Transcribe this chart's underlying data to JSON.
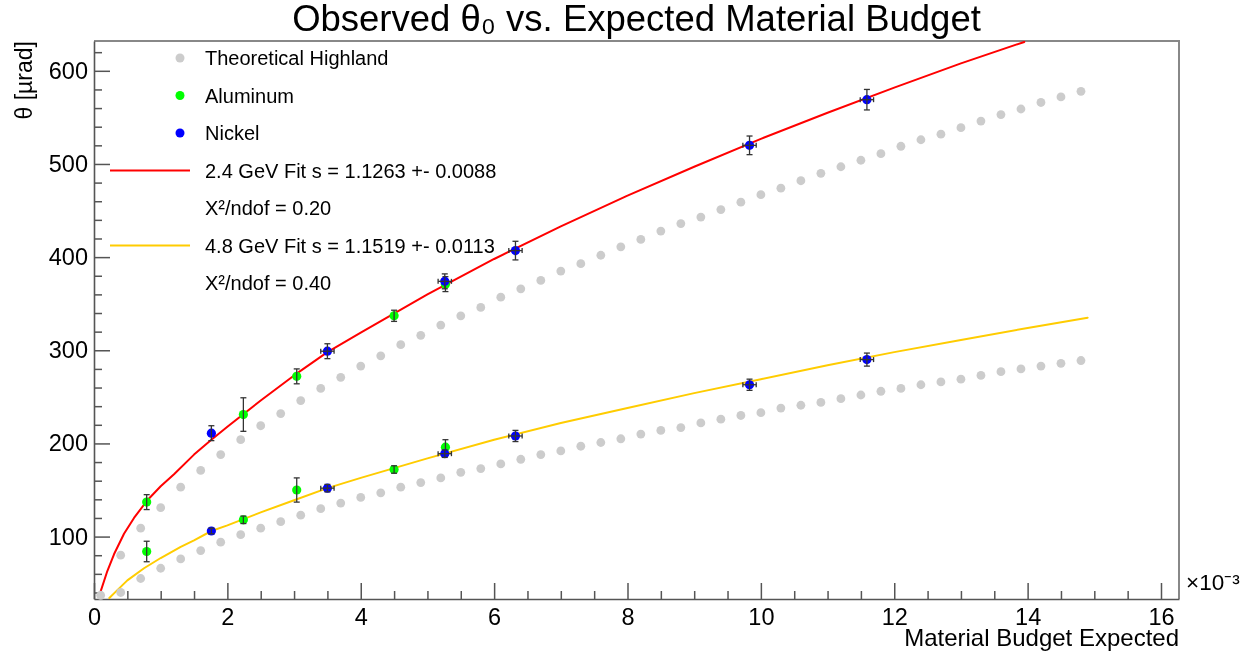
{
  "chart_data": {
    "type": "scatter",
    "title": "Observed θ₀ vs. Expected Material Budget",
    "xlabel": "Material Budget Expected",
    "ylabel": "θ [µrad]",
    "annotations": [
      "X²/ndof = 0.20",
      "X²/ndof = 0.40",
      "×10⁻³"
    ],
    "xlim": [
      0,
      16.27
    ],
    "ylim": [
      33,
      632
    ],
    "xticks": [
      0,
      {
        "value": 0.5,
        "label": null
      },
      {
        "value": 1,
        "label": null
      },
      {
        "value": 1.5,
        "label": null
      },
      2,
      {
        "value": 2.5,
        "label": null
      },
      {
        "value": 3,
        "label": null
      },
      {
        "value": 3.5,
        "label": null
      },
      4,
      {
        "value": 4.5,
        "label": null
      },
      {
        "value": 5,
        "label": null
      },
      {
        "value": 5.5,
        "label": null
      },
      6,
      {
        "value": 6.5,
        "label": null
      },
      {
        "value": 7,
        "label": null
      },
      {
        "value": 7.5,
        "label": null
      },
      8,
      {
        "value": 8.5,
        "label": null
      },
      {
        "value": 9,
        "label": null
      },
      {
        "value": 9.5,
        "label": null
      },
      10,
      {
        "value": 10.5,
        "label": null
      },
      {
        "value": 11,
        "label": null
      },
      {
        "value": 11.5,
        "label": null
      },
      12,
      {
        "value": 12.5,
        "label": null
      },
      {
        "value": 13,
        "label": null
      },
      {
        "value": 13.5,
        "label": null
      },
      14,
      {
        "value": 14.5,
        "label": null
      },
      {
        "value": 15,
        "label": null
      },
      {
        "value": 15.5,
        "label": null
      },
      16
    ],
    "yticks": [
      {
        "value": 40,
        "label": null
      },
      {
        "value": 60,
        "label": null
      },
      {
        "value": 80,
        "label": null
      },
      100,
      {
        "value": 120,
        "label": null
      },
      {
        "value": 140,
        "label": null
      },
      {
        "value": 160,
        "label": null
      },
      {
        "value": 180,
        "label": null
      },
      200,
      {
        "value": 220,
        "label": null
      },
      {
        "value": 240,
        "label": null
      },
      {
        "value": 260,
        "label": null
      },
      {
        "value": 280,
        "label": null
      },
      300,
      {
        "value": 320,
        "label": null
      },
      {
        "value": 340,
        "label": null
      },
      {
        "value": 360,
        "label": null
      },
      {
        "value": 380,
        "label": null
      },
      400,
      {
        "value": 420,
        "label": null
      },
      {
        "value": 440,
        "label": null
      },
      {
        "value": 460,
        "label": null
      },
      {
        "value": 480,
        "label": null
      },
      500,
      {
        "value": 520,
        "label": null
      },
      {
        "value": 540,
        "label": null
      },
      {
        "value": 560,
        "label": null
      },
      {
        "value": 580,
        "label": null
      },
      600,
      {
        "value": 620,
        "label": null
      }
    ],
    "legend": "top left",
    "marker": "circle",
    "series": [
      {
        "name": "Theoretical Highland",
        "color": "#cccccc",
        "x": [
          0.1,
          0.4,
          0.7,
          1,
          1.3,
          1.6,
          1.9,
          2.2,
          2.5,
          2.8,
          3.1,
          3.4,
          3.7,
          4,
          4.3,
          4.6,
          4.9,
          5.2,
          5.5,
          5.8,
          6.1,
          6.4,
          6.7,
          7,
          7.3,
          7.6,
          7.9,
          8.2,
          8.5,
          8.8,
          9.1,
          9.4,
          9.7,
          10,
          10.3,
          10.6,
          10.9,
          11.2,
          11.5,
          11.8,
          12.1,
          12.4,
          12.7,
          13,
          13.3,
          13.6,
          13.9,
          14.2,
          14.5,
          14.8,
          0.4,
          0.7,
          1,
          1.3,
          1.6,
          1.9,
          2.2,
          2.5,
          2.8,
          3.1,
          3.4,
          3.7,
          4,
          4.3,
          4.6,
          4.9,
          5.2,
          5.5,
          5.8,
          6.1,
          6.4,
          6.7,
          7,
          7.3,
          7.6,
          7.9,
          8.2,
          8.5,
          8.8,
          9.1,
          9.4,
          9.7,
          10,
          10.3,
          10.6,
          10.9,
          11.2,
          11.5,
          11.8,
          12.1,
          12.4,
          12.7,
          13,
          13.3,
          13.6,
          13.9,
          14.2,
          14.5,
          14.8
        ],
        "values": [
          37,
          80,
          109,
          131,
          153,
          171,
          188,
          204,
          219,
          232,
          246,
          259,
          271,
          283,
          294,
          306,
          316,
          327,
          337,
          346,
          357,
          366,
          375,
          385,
          393,
          402,
          411,
          419,
          428,
          436,
          443,
          451,
          459,
          467,
          474,
          482,
          490,
          497,
          504,
          511,
          519,
          526,
          532,
          539,
          546,
          553,
          559,
          566,
          572,
          578,
          40,
          55,
          66,
          76,
          85,
          94,
          102,
          109,
          116,
          123,
          130,
          136,
          142,
          147,
          153,
          158,
          163,
          169,
          173,
          178,
          183,
          188,
          192,
          197,
          201,
          205,
          210,
          214,
          217,
          222,
          226,
          230,
          233,
          238,
          241,
          244,
          248,
          252,
          256,
          259,
          263,
          266,
          269,
          273,
          277,
          280,
          283,
          286,
          289
        ]
      },
      {
        "name": "Aluminum",
        "color": "#00ff00",
        "x": [
          0.79,
          2.24,
          3.04,
          4.5,
          5.27,
          0.79,
          2.24,
          3.04,
          4.5,
          5.27
        ],
        "values": [
          137,
          231,
          272,
          337,
          371,
          84,
          118,
          150,
          172,
          196
        ],
        "errors": [
          8,
          18,
          8,
          6,
          8,
          11,
          4,
          13,
          4,
          8
        ]
      },
      {
        "name": "Nickel",
        "color": "#0000ff",
        "x": [
          1.76,
          3.5,
          5.26,
          6.32,
          9.83,
          11.59,
          1.76,
          3.5,
          5.26,
          6.32,
          9.83,
          11.59
        ],
        "values": [
          211,
          299,
          374,
          407,
          520,
          569,
          106,
          152,
          189,
          208,
          263,
          290
        ],
        "errors": [
          8,
          8,
          8,
          10,
          10,
          11,
          3,
          4,
          4,
          6,
          6,
          7
        ],
        "xerrors": [
          null,
          0.1,
          0.1,
          0.1,
          0.1,
          0.1,
          null,
          0.1,
          0.1,
          0.1,
          0.1,
          0.1
        ]
      },
      {
        "name": "2.4 GeV Fit s = 1.1263 +- 0.0088",
        "type": "line",
        "marker": "none",
        "color": "#ff0000",
        "x": [
          0.085,
          0.2,
          0.3,
          0.45,
          0.6,
          0.8,
          1,
          1.2,
          1.5,
          1.76,
          2,
          2.5,
          3,
          3.5,
          4,
          5,
          6,
          7,
          8,
          9,
          10,
          11,
          12,
          13,
          13.95
        ],
        "values": [
          38,
          63,
          81,
          103,
          120,
          139,
          154,
          167,
          188,
          204,
          218,
          246,
          273,
          298,
          319,
          360,
          398,
          433,
          466,
          497,
          527,
          555,
          582,
          608,
          631
        ]
      },
      {
        "name": "4.8 GeV Fit s = 1.1519 +- 0.0113",
        "type": "line",
        "marker": "none",
        "color": "#ffcc00",
        "x": [
          0.23,
          0.3,
          0.5,
          0.75,
          1,
          1.3,
          1.5,
          1.76,
          2,
          2.5,
          3,
          3.5,
          4,
          5,
          6,
          7,
          8,
          9,
          10,
          11,
          12,
          13,
          14,
          14.9
        ],
        "values": [
          34,
          39,
          53,
          66,
          77,
          89,
          96,
          106,
          112,
          126,
          139,
          152,
          163,
          184,
          204,
          222,
          238,
          254,
          269,
          284,
          298,
          311,
          324,
          335
        ]
      }
    ]
  }
}
